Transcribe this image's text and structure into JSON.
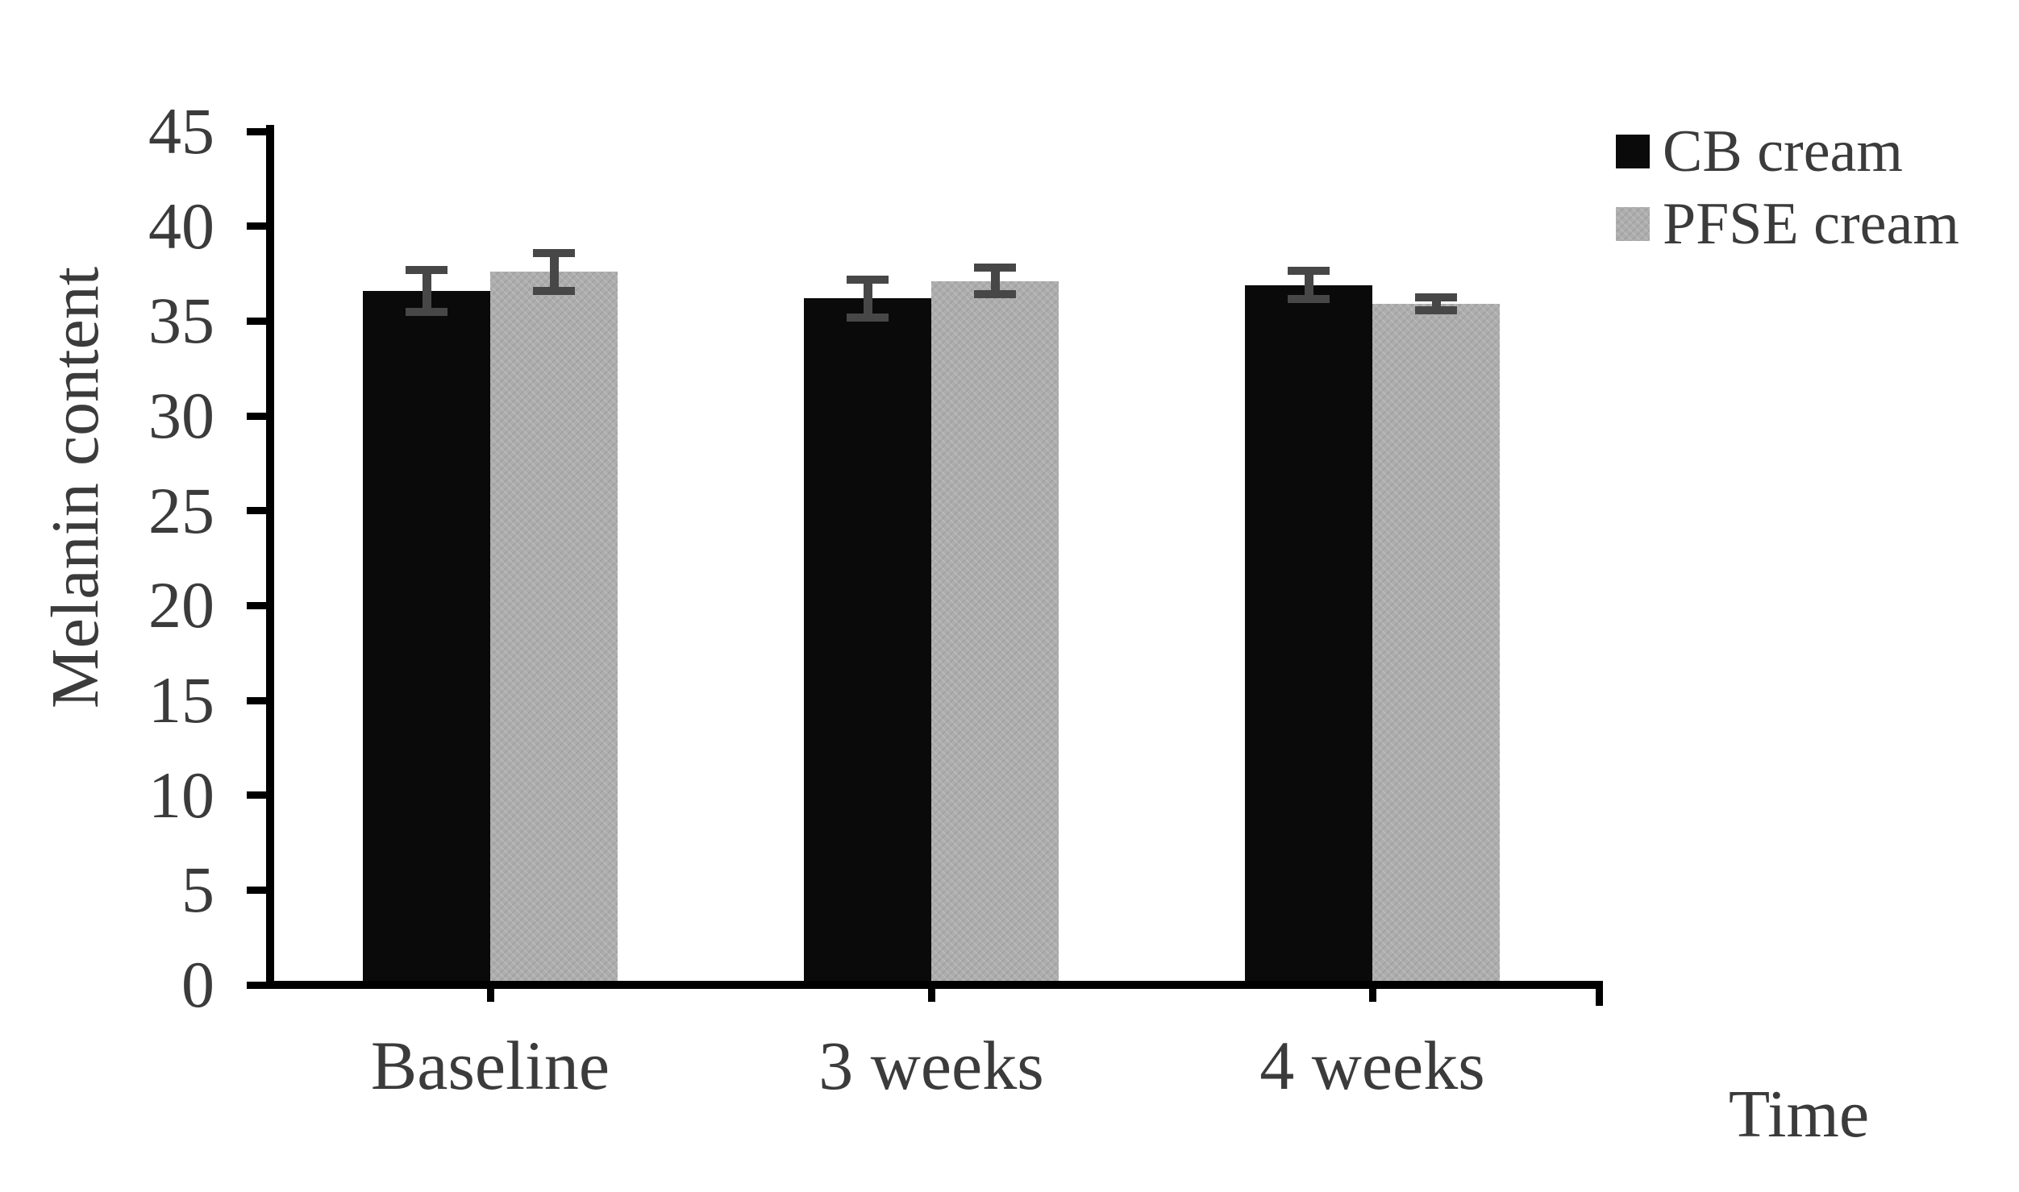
{
  "figure": {
    "background": "#ffffff",
    "text_color": "#3b3b3b",
    "axis_color": "#000000"
  },
  "chart_data": {
    "type": "bar",
    "title": "",
    "xlabel": "Time",
    "ylabel": "Melanin content",
    "categories": [
      "Baseline",
      "3 weeks",
      "4 weeks"
    ],
    "series": [
      {
        "name": "CB cream",
        "color": "#0a0a0a",
        "pattern": "solid",
        "values": [
          36.6,
          36.2,
          36.9
        ],
        "errors": [
          1.1,
          1.0,
          0.75
        ]
      },
      {
        "name": "PFSE cream",
        "color": "#adadad",
        "pattern": "fine-crosshatch",
        "values": [
          37.6,
          37.1,
          35.9
        ],
        "errors": [
          1.0,
          0.7,
          0.35
        ]
      }
    ],
    "ylim": [
      0,
      45
    ],
    "y_ticks": [
      0,
      5,
      10,
      15,
      20,
      25,
      30,
      35,
      40,
      45
    ],
    "grid": false,
    "legend_position": "top-right",
    "error_bars": true,
    "error_bar_color": "#474747"
  }
}
